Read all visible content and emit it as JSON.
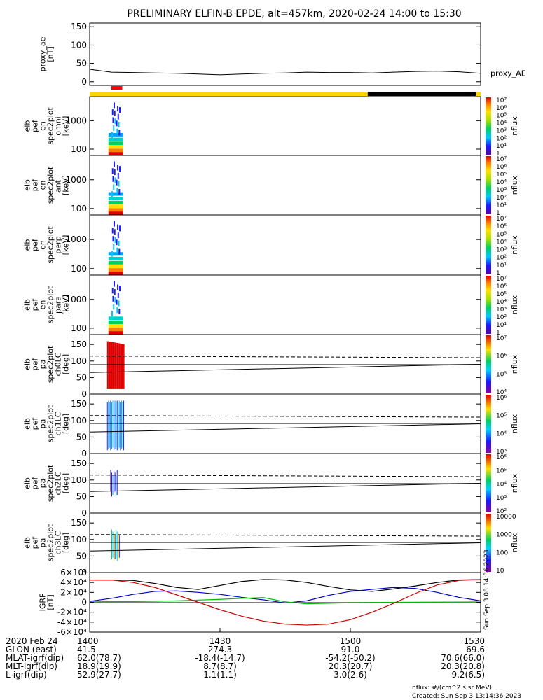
{
  "title": "PRELIMINARY ELFIN-B EPDE, alt=457km, 2020-02-24 14:00 to 15:30",
  "colors": {
    "yellow_bar": "#ffd400",
    "black_bar": "#000000",
    "red_marker": "#ff0000",
    "bx": "#000000",
    "by": "#0000cc",
    "bz": "#00bb00",
    "bt": "#cc0000"
  },
  "chart_data": [
    {
      "type": "line",
      "panel": "proxy_ae",
      "ylabel": [
        "proxy_ae",
        "[nT]"
      ],
      "ylim": [
        -10,
        160
      ],
      "yticks": [
        0,
        50,
        100,
        150
      ],
      "legend": "proxy_AE",
      "x_minutes": [
        0,
        5,
        10,
        15,
        20,
        25,
        30,
        35,
        40,
        45,
        50,
        55,
        60,
        65,
        70,
        75,
        80,
        85,
        90
      ],
      "values": [
        34,
        26,
        25,
        24,
        23,
        21,
        19,
        21,
        23,
        24,
        26,
        25,
        25,
        24,
        26,
        28,
        29,
        27,
        23
      ]
    },
    {
      "type": "heatmap",
      "panel": "omni",
      "ylabel": [
        "elb",
        "pef",
        "en",
        "spec2plot",
        "omni",
        "[keV]"
      ],
      "yscale": "log",
      "ylim": [
        60,
        7000
      ],
      "yticks": [
        100,
        1000
      ],
      "colorbar": {
        "label": "nflux",
        "scale": "log",
        "range": [
          1,
          10000000
        ],
        "ticks": [
          "1",
          "10¹",
          "10²",
          "10³",
          "10⁴",
          "10⁵",
          "10⁶",
          "10⁷"
        ]
      },
      "time_range_minutes": [
        4,
        8
      ],
      "energy_bands": [
        {
          "keV": 70,
          "level": 7
        },
        {
          "keV": 90,
          "level": 6
        },
        {
          "keV": 120,
          "level": 5
        },
        {
          "keV": 160,
          "level": 4
        },
        {
          "keV": 220,
          "level": 3
        },
        {
          "keV": 320,
          "level": 2
        }
      ]
    },
    {
      "type": "heatmap",
      "panel": "anti",
      "ylabel": [
        "elb",
        "pef",
        "en",
        "spec2plot",
        "anti",
        "[keV]"
      ],
      "yscale": "log",
      "ylim": [
        60,
        7000
      ],
      "yticks": [
        100,
        1000
      ],
      "colorbar": {
        "label": "nflux",
        "scale": "log",
        "range": [
          1,
          10000000
        ],
        "ticks": [
          "1",
          "10¹",
          "10²",
          "10³",
          "10⁴",
          "10⁵",
          "10⁶",
          "10⁷"
        ]
      },
      "time_range_minutes": [
        4,
        8
      ],
      "energy_bands": [
        {
          "keV": 70,
          "level": 7
        },
        {
          "keV": 90,
          "level": 6
        },
        {
          "keV": 120,
          "level": 5
        },
        {
          "keV": 160,
          "level": 4
        },
        {
          "keV": 220,
          "level": 3
        },
        {
          "keV": 320,
          "level": 2
        }
      ]
    },
    {
      "type": "heatmap",
      "panel": "perp",
      "ylabel": [
        "elb",
        "pef",
        "en",
        "spec2plot",
        "perp",
        "[keV]"
      ],
      "yscale": "log",
      "ylim": [
        60,
        7000
      ],
      "yticks": [
        100,
        1000
      ],
      "colorbar": {
        "label": "nflux",
        "scale": "log",
        "range": [
          1,
          10000000
        ],
        "ticks": [
          "1",
          "10¹",
          "10²",
          "10³",
          "10⁴",
          "10⁵",
          "10⁶",
          "10⁷"
        ]
      },
      "time_range_minutes": [
        4,
        8
      ],
      "energy_bands": [
        {
          "keV": 70,
          "level": 7
        },
        {
          "keV": 90,
          "level": 6
        },
        {
          "keV": 120,
          "level": 5
        },
        {
          "keV": 160,
          "level": 4
        },
        {
          "keV": 220,
          "level": 3
        },
        {
          "keV": 320,
          "level": 2
        }
      ]
    },
    {
      "type": "heatmap",
      "panel": "para",
      "ylabel": [
        "elb",
        "pef",
        "en",
        "spec2plot",
        "para",
        "[keV]"
      ],
      "yscale": "log",
      "ylim": [
        60,
        7000
      ],
      "yticks": [
        100,
        1000
      ],
      "colorbar": {
        "label": "nflux",
        "scale": "log",
        "range": [
          1,
          10000000
        ],
        "ticks": [
          "1",
          "10¹",
          "10²",
          "10³",
          "10⁴",
          "10⁵",
          "10⁶",
          "10⁷"
        ]
      },
      "time_range_minutes": [
        4,
        8
      ],
      "energy_bands": [
        {
          "keV": 70,
          "level": 7
        },
        {
          "keV": 90,
          "level": 6
        },
        {
          "keV": 120,
          "level": 5
        },
        {
          "keV": 160,
          "level": 4
        },
        {
          "keV": 220,
          "level": 2.5
        }
      ]
    },
    {
      "type": "heatmap",
      "panel": "ch0LC",
      "ylabel": [
        "elb",
        "pef",
        "pa",
        "spec2plot",
        "ch0LC",
        "[deg]"
      ],
      "ylim": [
        0,
        180
      ],
      "yticks": [
        0,
        50,
        100,
        150
      ],
      "colorbar": {
        "label": "nflux",
        "scale": "log",
        "range": [
          1000,
          10000000
        ],
        "ticks": [
          "10⁴",
          "10⁵",
          "10⁶",
          "10⁷"
        ]
      },
      "time_range_minutes": [
        4,
        8
      ],
      "losscone_deg": [
        65,
        90
      ],
      "antilosscone_deg": [
        110,
        115
      ]
    },
    {
      "type": "heatmap",
      "panel": "ch1LC",
      "ylabel": [
        "elb",
        "pef",
        "pa",
        "spec2plot",
        "ch1LC",
        "[deg]"
      ],
      "ylim": [
        0,
        180
      ],
      "yticks": [
        0,
        50,
        100,
        150
      ],
      "colorbar": {
        "label": "nflux",
        "scale": "log",
        "range": [
          1000,
          1000000
        ],
        "ticks": [
          "10³",
          "10⁴",
          "10⁵",
          "10⁶"
        ]
      },
      "time_range_minutes": [
        4,
        8
      ],
      "losscone_deg": [
        65,
        90
      ],
      "antilosscone_deg": [
        110,
        115
      ]
    },
    {
      "type": "heatmap",
      "panel": "ch2LC",
      "ylabel": [
        "elb",
        "pef",
        "pa",
        "spec2plot",
        "ch2LC",
        "[deg]"
      ],
      "ylim": [
        0,
        180
      ],
      "yticks": [
        0,
        50,
        100,
        150
      ],
      "colorbar": {
        "label": "nflux",
        "scale": "log",
        "range": [
          100,
          1000000
        ],
        "ticks": [
          "10²",
          "10³",
          "10⁴",
          "10⁵",
          "10⁶"
        ]
      },
      "time_range_minutes": [
        4,
        8
      ],
      "losscone_deg": [
        65,
        90
      ],
      "antilosscone_deg": [
        110,
        115
      ]
    },
    {
      "type": "heatmap",
      "panel": "ch3LC",
      "ylabel": [
        "elb",
        "pef",
        "pa",
        "spec2plot",
        "ch3LC",
        "[deg]"
      ],
      "ylim": [
        0,
        180
      ],
      "yticks": [
        0,
        50,
        100,
        150
      ],
      "colorbar": {
        "label": "nflux",
        "scale": "log",
        "range": [
          10,
          10000
        ],
        "ticks": [
          "10",
          "100",
          "1000",
          "10000"
        ]
      },
      "time_range_minutes": [
        4,
        8
      ],
      "losscone_deg": [
        65,
        90
      ],
      "antilosscone_deg": [
        110,
        115
      ]
    },
    {
      "type": "line",
      "panel": "igrf",
      "ylabel": [
        "IGRF",
        "[nT]"
      ],
      "ylim": [
        -60000,
        60000
      ],
      "yticks": [
        "-6×10⁴",
        "-4×10⁴",
        "-2×10⁴",
        "0",
        "2×10⁴",
        "4×10⁴",
        "6×10⁴"
      ],
      "ytick_values": [
        -60000,
        -40000,
        -20000,
        0,
        20000,
        40000,
        60000
      ],
      "x_minutes": [
        0,
        5,
        10,
        15,
        20,
        25,
        30,
        35,
        40,
        45,
        50,
        55,
        60,
        65,
        70,
        75,
        80,
        85,
        90
      ],
      "series": [
        {
          "values": [
            45000,
            45000,
            44000,
            38000,
            30000,
            26000,
            34000,
            42000,
            46000,
            45000,
            40000,
            32000,
            25000,
            22000,
            27000,
            33000,
            40000,
            45000,
            46000
          ]
        },
        {
          "values": [
            2000,
            8000,
            16000,
            22000,
            23000,
            20000,
            16000,
            10000,
            5000,
            -1500,
            3000,
            14000,
            22000,
            26000,
            30000,
            28000,
            20000,
            10000,
            3000
          ]
        },
        {
          "values": [
            1000,
            1200,
            1500,
            2000,
            3000,
            4500,
            6000,
            8000,
            9500,
            1000,
            -3000,
            -2000,
            -1000,
            -500,
            0,
            200,
            400,
            600,
            800
          ]
        },
        {
          "values": [
            45000,
            45000,
            40000,
            30000,
            15000,
            0,
            -15000,
            -28000,
            -38000,
            -44000,
            -46000,
            -44000,
            -35000,
            -20000,
            -2000,
            18000,
            35000,
            44000,
            46000
          ]
        }
      ]
    }
  ],
  "status_bars": {
    "fgm": [
      {
        "from": 0,
        "to": 64,
        "color": "yellow"
      },
      {
        "from": 64,
        "to": 89,
        "color": "black"
      },
      {
        "from": 89,
        "to": 90,
        "color": "yellow"
      }
    ],
    "epd": [
      {
        "from": 5,
        "to": 7.5,
        "color": "red"
      }
    ]
  },
  "footer": {
    "rows": [
      {
        "label": "2020 Feb 24",
        "values": [
          "1400",
          "1430",
          "1500",
          "1530"
        ]
      },
      {
        "label": "GLON (east)",
        "values": [
          "41.5",
          "274.3",
          "91.0",
          "69.6"
        ]
      },
      {
        "label": "MLAT-igrf(dip)",
        "values": [
          "62.0(78.7)",
          "-18.4(-14.7)",
          "-54.2(-50.2)",
          "70.6(66.0)"
        ]
      },
      {
        "label": "MLT-igrf(dip)",
        "values": [
          "18.9(19.9)",
          "8.7(8.7)",
          "20.3(20.7)",
          "20.3(20.8)"
        ]
      },
      {
        "label": "L-igrf(dip)",
        "values": [
          "52.9(27.7)",
          "1.1(1.1)",
          "3.0(2.6)",
          "9.2(6.5)"
        ]
      }
    ],
    "units_note": "nflux: #/(cm^2 s sr MeV)",
    "created": "Created: Sun Sep  3 13:14:36 2023",
    "side_text": "Sun Sep  3 08:14:36 2023"
  }
}
